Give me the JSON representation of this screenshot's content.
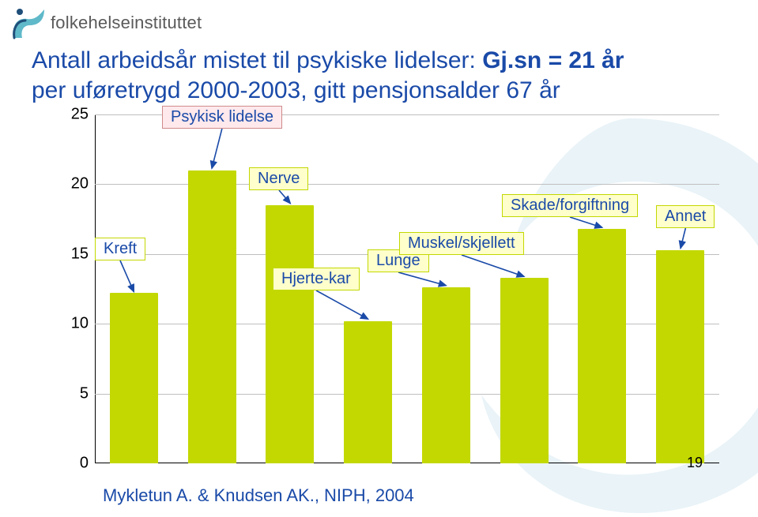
{
  "logo_text": "folkehelseinstituttet",
  "title_line1_a": "Antall arbeidsår mistet til psykiske lidelser: ",
  "title_line1_b": "Gj.sn = 21 år",
  "title_line2": "per uføretrygd 2000-2003, gitt pensjonsalder 67 år",
  "source": "Mykletun A. & Knudsen AK., NIPH, 2004",
  "page_number": "19",
  "chart": {
    "type": "bar",
    "ylim": [
      0,
      25
    ],
    "ytick_step": 5,
    "yticks": [
      0,
      5,
      10,
      15,
      20,
      25
    ],
    "grid_color": "#bfbfbf",
    "axis_color": "#000000",
    "bar_color": "#c3d800",
    "bar_width_ratio": 0.62,
    "background_color": "#ffffff",
    "label_fontsize": 20,
    "tick_fontsize": 20,
    "categories": [
      {
        "key": "kreft",
        "label": "Kreft",
        "value": 12.2,
        "box_fill": "#ffffff",
        "box_border": "#c3d800"
      },
      {
        "key": "psykisk",
        "label": "Psykisk lidelse",
        "value": 21.0,
        "box_fill": "#ffe9ec",
        "box_border": "#d08a8a"
      },
      {
        "key": "nerve",
        "label": "Nerve",
        "value": 18.5,
        "box_fill": "#ffffcc",
        "box_border": "#c3d800"
      },
      {
        "key": "hjerte",
        "label": "Hjerte-kar",
        "value": 10.2,
        "box_fill": "#ffffcc",
        "box_border": "#c3d800"
      },
      {
        "key": "lunge",
        "label": "Lunge",
        "value": 12.6,
        "box_fill": "#ffffcc",
        "box_border": "#c3d800"
      },
      {
        "key": "muskel",
        "label": "Muskel/skjellett",
        "value": 13.3,
        "box_fill": "#ffffcc",
        "box_border": "#c3d800"
      },
      {
        "key": "skade",
        "label": "Skade/forgiftning",
        "value": 16.8,
        "box_fill": "#ffffcc",
        "box_border": "#c3d800"
      },
      {
        "key": "annet",
        "label": "Annet",
        "value": 15.3,
        "box_fill": "#ffffcc",
        "box_border": "#c3d800"
      }
    ],
    "label_positions": {
      "kreft": {
        "x": 0,
        "y_val": 16.2
      },
      "psykisk": {
        "x": 85,
        "y_val": 25.6
      },
      "nerve": {
        "x": 195,
        "y_val": 21.2
      },
      "hjerte": {
        "x": 225,
        "y_val": 14.0
      },
      "lunge": {
        "x": 345,
        "y_val": 15.3
      },
      "muskel": {
        "x": 385,
        "y_val": 16.6
      },
      "skade": {
        "x": 515,
        "y_val": 19.3
      },
      "annet": {
        "x": 710,
        "y_val": 18.5
      }
    }
  },
  "watermark_color": "#e9f3f8",
  "logo_colors": {
    "teal": "#5fb9c9",
    "navy": "#1f4e79"
  }
}
